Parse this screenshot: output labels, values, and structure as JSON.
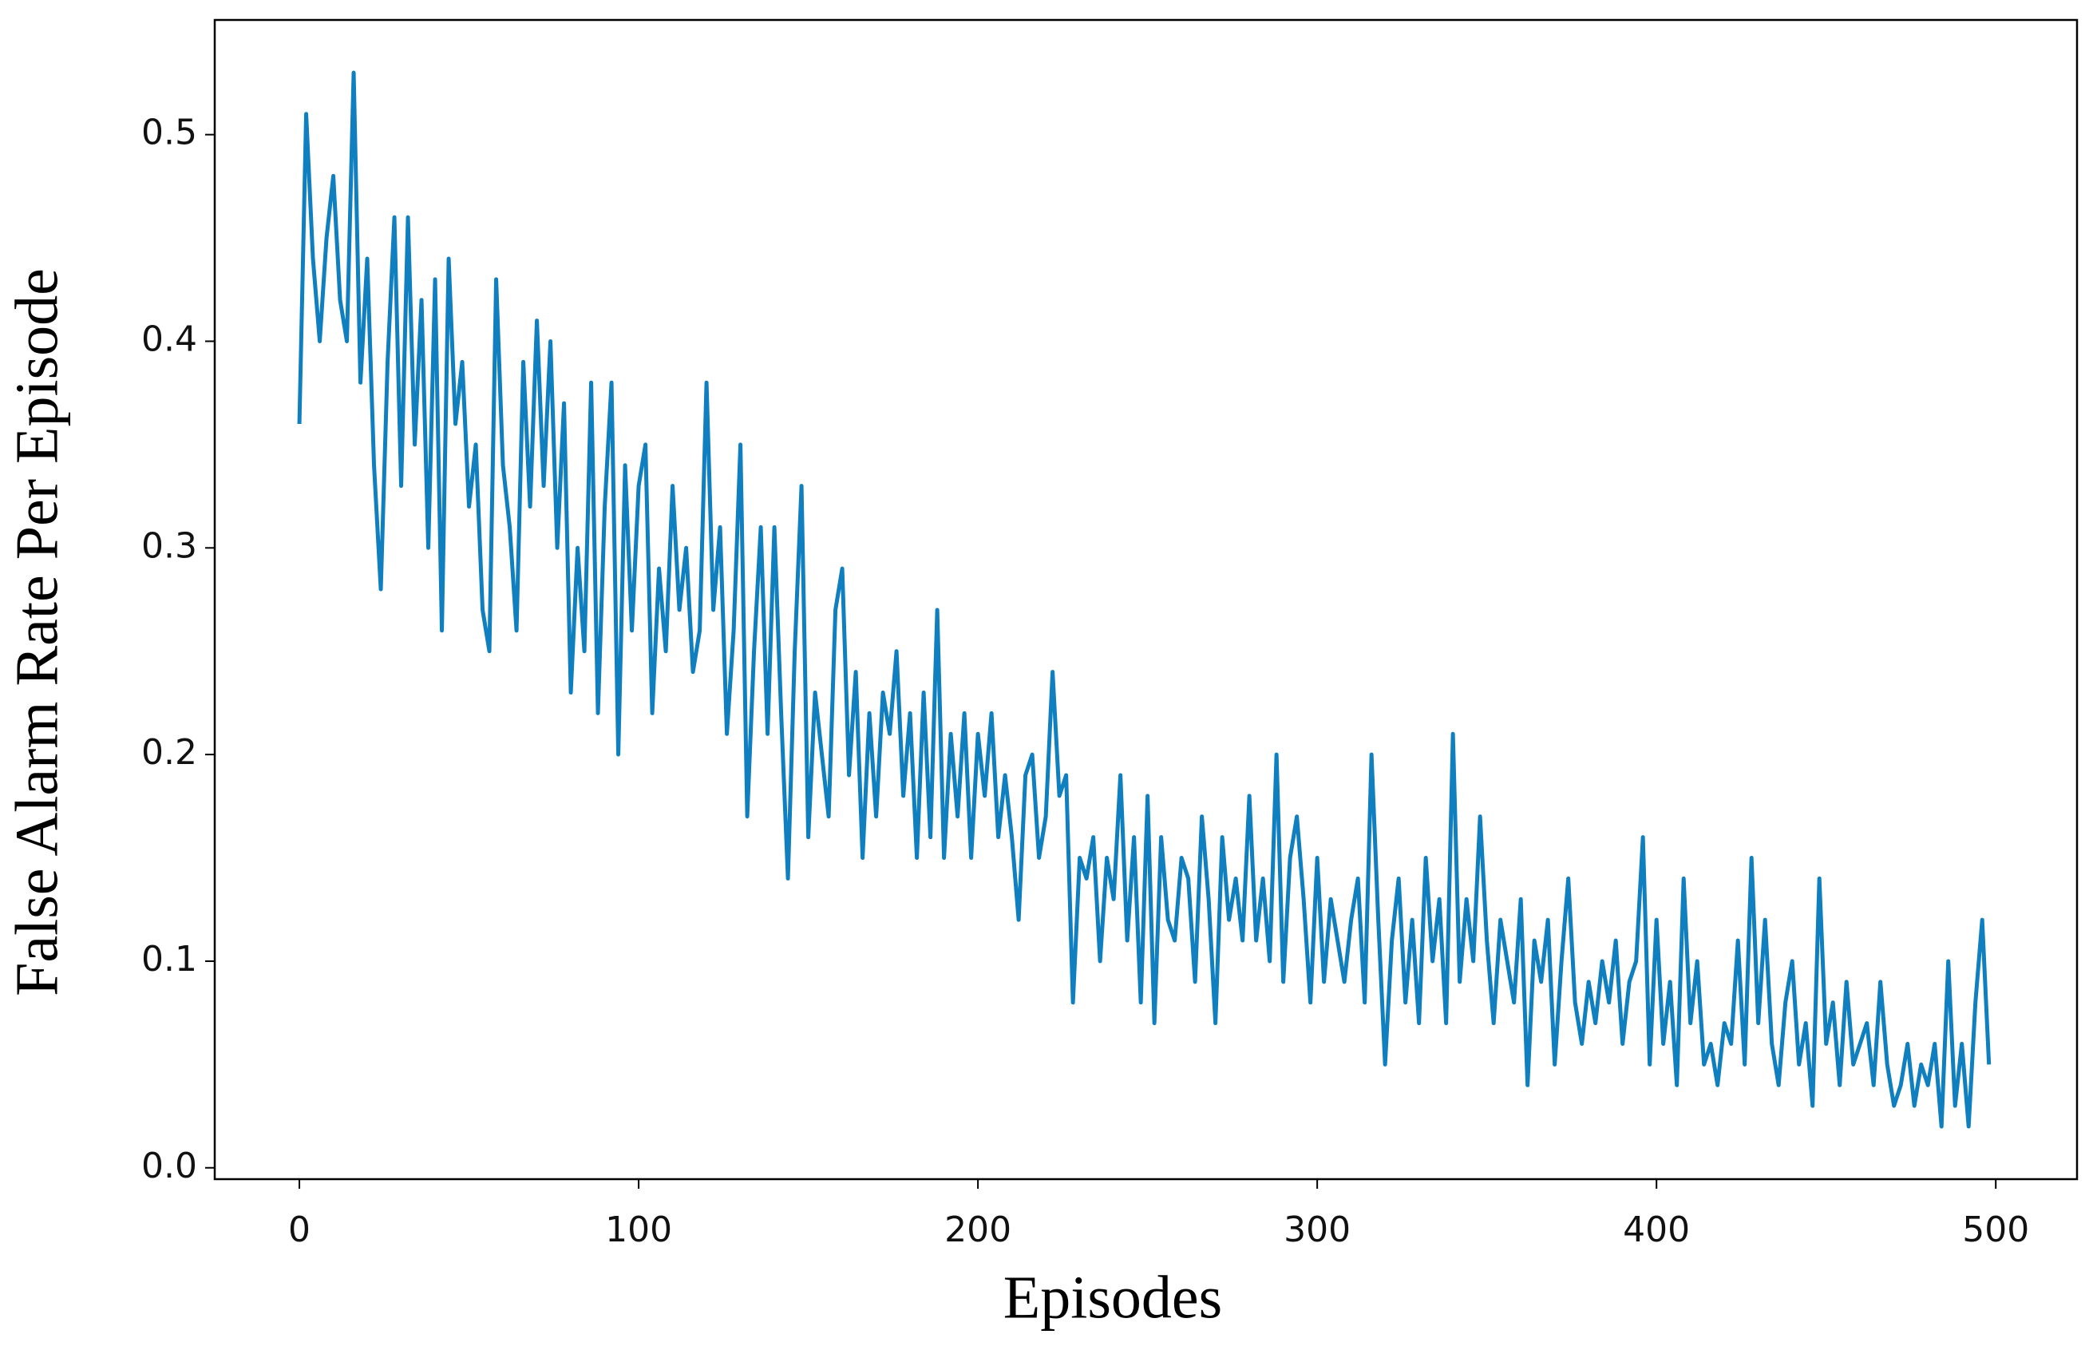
{
  "chart_data": {
    "type": "line",
    "xlabel": "Episodes",
    "ylabel": "False Alarm Rate Per Episode",
    "color": "#0f7fc0",
    "x": [
      0,
      2,
      4,
      6,
      8,
      10,
      12,
      14,
      16,
      18,
      20,
      22,
      24,
      26,
      28,
      30,
      32,
      34,
      36,
      38,
      40,
      42,
      44,
      46,
      48,
      50,
      52,
      54,
      56,
      58,
      60,
      62,
      64,
      66,
      68,
      70,
      72,
      74,
      76,
      78,
      80,
      82,
      84,
      86,
      88,
      90,
      92,
      94,
      96,
      98,
      100,
      102,
      104,
      106,
      108,
      110,
      112,
      114,
      116,
      118,
      120,
      122,
      124,
      126,
      128,
      130,
      132,
      134,
      136,
      138,
      140,
      142,
      144,
      146,
      148,
      150,
      152,
      154,
      156,
      158,
      160,
      162,
      164,
      166,
      168,
      170,
      172,
      174,
      176,
      178,
      180,
      182,
      184,
      186,
      188,
      190,
      192,
      194,
      196,
      198,
      200,
      202,
      204,
      206,
      208,
      210,
      212,
      214,
      216,
      218,
      220,
      222,
      224,
      226,
      228,
      230,
      232,
      234,
      236,
      238,
      240,
      242,
      244,
      246,
      248,
      250,
      252,
      254,
      256,
      258,
      260,
      262,
      264,
      266,
      268,
      270,
      272,
      274,
      276,
      278,
      280,
      282,
      284,
      286,
      288,
      290,
      292,
      294,
      296,
      298,
      300,
      302,
      304,
      306,
      308,
      310,
      312,
      314,
      316,
      318,
      320,
      322,
      324,
      326,
      328,
      330,
      332,
      334,
      336,
      338,
      340,
      342,
      344,
      346,
      348,
      350,
      352,
      354,
      356,
      358,
      360,
      362,
      364,
      366,
      368,
      370,
      372,
      374,
      376,
      378,
      380,
      382,
      384,
      386,
      388,
      390,
      392,
      394,
      396,
      398,
      400,
      402,
      404,
      406,
      408,
      410,
      412,
      414,
      416,
      418,
      420,
      422,
      424,
      426,
      428,
      430,
      432,
      434,
      436,
      438,
      440,
      442,
      444,
      446,
      448,
      450,
      452,
      454,
      456,
      458,
      460,
      462,
      464,
      466,
      468,
      470,
      472,
      474,
      476,
      478,
      480,
      482,
      484,
      486,
      488,
      490,
      492,
      494,
      496,
      498
    ],
    "values": [
      0.36,
      0.51,
      0.44,
      0.4,
      0.45,
      0.48,
      0.42,
      0.4,
      0.53,
      0.38,
      0.44,
      0.34,
      0.28,
      0.39,
      0.46,
      0.33,
      0.46,
      0.35,
      0.42,
      0.3,
      0.43,
      0.26,
      0.44,
      0.36,
      0.39,
      0.32,
      0.35,
      0.27,
      0.25,
      0.43,
      0.34,
      0.31,
      0.26,
      0.39,
      0.32,
      0.41,
      0.33,
      0.4,
      0.3,
      0.37,
      0.23,
      0.3,
      0.25,
      0.38,
      0.22,
      0.32,
      0.38,
      0.2,
      0.34,
      0.26,
      0.33,
      0.35,
      0.22,
      0.29,
      0.25,
      0.33,
      0.27,
      0.3,
      0.24,
      0.26,
      0.38,
      0.27,
      0.31,
      0.21,
      0.26,
      0.35,
      0.17,
      0.25,
      0.31,
      0.21,
      0.31,
      0.22,
      0.14,
      0.25,
      0.33,
      0.16,
      0.23,
      0.2,
      0.17,
      0.27,
      0.29,
      0.19,
      0.24,
      0.15,
      0.22,
      0.17,
      0.23,
      0.21,
      0.25,
      0.18,
      0.22,
      0.15,
      0.23,
      0.16,
      0.27,
      0.15,
      0.21,
      0.17,
      0.22,
      0.15,
      0.21,
      0.18,
      0.22,
      0.16,
      0.19,
      0.16,
      0.12,
      0.19,
      0.2,
      0.15,
      0.17,
      0.24,
      0.18,
      0.19,
      0.08,
      0.15,
      0.14,
      0.16,
      0.1,
      0.15,
      0.13,
      0.19,
      0.11,
      0.16,
      0.08,
      0.18,
      0.07,
      0.16,
      0.12,
      0.11,
      0.15,
      0.14,
      0.09,
      0.17,
      0.13,
      0.07,
      0.16,
      0.12,
      0.14,
      0.11,
      0.18,
      0.11,
      0.14,
      0.1,
      0.2,
      0.09,
      0.15,
      0.17,
      0.13,
      0.08,
      0.15,
      0.09,
      0.13,
      0.11,
      0.09,
      0.12,
      0.14,
      0.08,
      0.2,
      0.12,
      0.05,
      0.11,
      0.14,
      0.08,
      0.12,
      0.07,
      0.15,
      0.1,
      0.13,
      0.07,
      0.21,
      0.09,
      0.13,
      0.1,
      0.17,
      0.11,
      0.07,
      0.12,
      0.1,
      0.08,
      0.13,
      0.04,
      0.11,
      0.09,
      0.12,
      0.05,
      0.1,
      0.14,
      0.08,
      0.06,
      0.09,
      0.07,
      0.1,
      0.08,
      0.11,
      0.06,
      0.09,
      0.1,
      0.16,
      0.05,
      0.12,
      0.06,
      0.09,
      0.04,
      0.14,
      0.07,
      0.1,
      0.05,
      0.06,
      0.04,
      0.07,
      0.06,
      0.11,
      0.05,
      0.15,
      0.07,
      0.12,
      0.06,
      0.04,
      0.08,
      0.1,
      0.05,
      0.07,
      0.03,
      0.14,
      0.06,
      0.08,
      0.04,
      0.09,
      0.05,
      0.06,
      0.07,
      0.04,
      0.09,
      0.05,
      0.03,
      0.04,
      0.06,
      0.03,
      0.05,
      0.04,
      0.06,
      0.02,
      0.1,
      0.03,
      0.06,
      0.02,
      0.08,
      0.12,
      0.05
    ],
    "xlim": [
      -24.95,
      523.95
    ],
    "ylim": [
      -0.0055,
      0.5555
    ],
    "xticks": [
      0,
      100,
      200,
      300,
      400,
      500
    ],
    "yticks": [
      {
        "value": 0,
        "label": "0.0"
      },
      0.1,
      0.2,
      0.3,
      0.4,
      0.5
    ],
    "grid": false
  }
}
